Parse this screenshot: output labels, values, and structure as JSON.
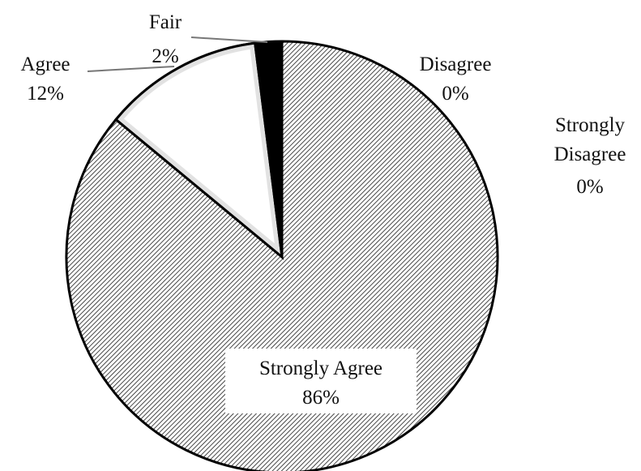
{
  "chart_data": {
    "type": "pie",
    "title": "",
    "slices": [
      {
        "label": "Strongly Agree",
        "value": 86,
        "pct_label": "86%",
        "pattern": "hatch-dense",
        "color": "#222222"
      },
      {
        "label": "Agree",
        "value": 12,
        "pct_label": "12%",
        "pattern": "light",
        "color": "#e2e2e2"
      },
      {
        "label": "Fair",
        "value": 2,
        "pct_label": "2%",
        "pattern": "solid",
        "color": "#000000"
      },
      {
        "label": "Disagree",
        "value": 0,
        "pct_label": "0%",
        "pattern": "none",
        "color": "#ffffff"
      },
      {
        "label": "Strongly Disagree",
        "value": 0,
        "pct_label": "0%",
        "pattern": "none",
        "color": "#ffffff"
      }
    ],
    "start_angle": "12 o'clock",
    "direction": "clockwise",
    "legend": "none"
  }
}
